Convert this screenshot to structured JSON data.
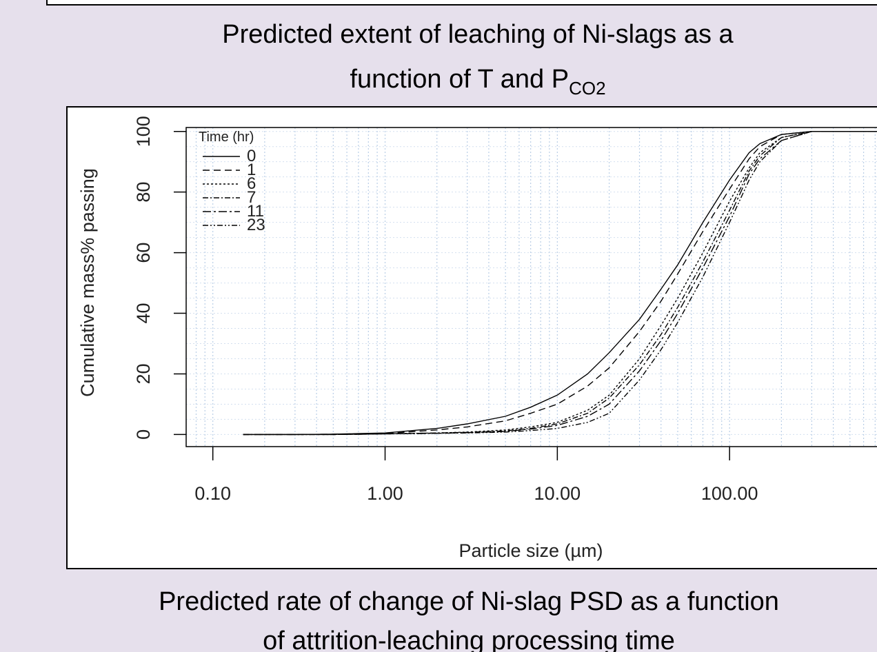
{
  "caption_top": {
    "line1": "Predicted extent of leaching of Ni-slags as  a",
    "line2": "function of T and P",
    "subscript": "CO2"
  },
  "chart_data": {
    "type": "line",
    "xlabel": "Particle size (µm)",
    "ylabel": "Cumulative mass% passing",
    "legend_title": "Time (hr)",
    "legend": "top-left",
    "log_x": true,
    "grid": true,
    "xlim": [
      0.07,
      1000
    ],
    "ylim": [
      -4,
      101.3
    ],
    "xticks": [
      {
        "value": 0.1,
        "label": "0.10"
      },
      {
        "value": 1,
        "label": "1.00"
      },
      {
        "value": 10,
        "label": "10.00"
      },
      {
        "value": 100,
        "label": "100.00"
      }
    ],
    "yticks": [
      0,
      20,
      40,
      60,
      80,
      100
    ],
    "xgrid": [
      0.08,
      0.09,
      0.1,
      0.2,
      0.3,
      0.4,
      0.5,
      0.6,
      0.7,
      0.8,
      0.9,
      1,
      2,
      3,
      4,
      5,
      6,
      7,
      8,
      9,
      10,
      20,
      30,
      40,
      50,
      60,
      70,
      80,
      90,
      100,
      200,
      300,
      400,
      500,
      600,
      700,
      800,
      900
    ],
    "ygrid": [
      0,
      5,
      10,
      15,
      20,
      25,
      30,
      35,
      40,
      45,
      50,
      55,
      60,
      65,
      70,
      75,
      80,
      85,
      90,
      95,
      100
    ],
    "x": [
      0.15,
      0.3,
      0.5,
      0.7,
      1,
      2,
      3,
      5,
      7,
      10,
      15,
      20,
      30,
      40,
      50,
      70,
      100,
      130,
      150,
      200,
      300,
      1000
    ],
    "series": [
      {
        "name": "0",
        "color": "#000000",
        "dash": "none",
        "values": [
          0,
          0,
          0.1,
          0.3,
          0.5,
          2,
          3.5,
          6,
          9,
          13,
          20,
          27,
          38,
          48,
          56,
          70,
          84,
          93,
          96,
          99,
          100,
          100
        ]
      },
      {
        "name": "1",
        "color": "#000000",
        "dash": "10 6",
        "values": [
          0,
          0,
          0.1,
          0.2,
          0.3,
          1.5,
          2.5,
          4.5,
          7,
          10,
          16,
          22,
          34,
          44,
          53,
          67,
          81,
          91,
          95,
          99,
          100,
          100
        ]
      },
      {
        "name": "6",
        "color": "#000000",
        "dash": "3 3",
        "values": [
          0,
          0,
          0,
          0.1,
          0.2,
          0.5,
          0.8,
          1.5,
          2.5,
          4,
          8,
          13,
          25,
          36,
          45,
          60,
          77,
          88,
          93,
          98,
          100,
          100
        ]
      },
      {
        "name": "7",
        "color": "#000000",
        "dash": "8 3 2 3",
        "values": [
          0,
          0,
          0,
          0.1,
          0.2,
          0.5,
          0.7,
          1.2,
          2,
          3.5,
          7,
          12,
          23,
          33,
          42,
          57,
          74,
          87,
          92,
          98,
          100,
          100
        ]
      },
      {
        "name": "11",
        "color": "#000000",
        "dash": "12 4 3 4",
        "values": [
          0,
          0,
          0,
          0.1,
          0.2,
          0.4,
          0.6,
          1,
          1.8,
          3,
          6,
          10,
          21,
          31,
          40,
          55,
          72,
          86,
          91,
          97,
          100,
          100
        ]
      },
      {
        "name": "23",
        "color": "#000000",
        "dash": "8 3 2 3 2 3",
        "values": [
          0,
          0,
          0,
          0.1,
          0.2,
          0.4,
          0.5,
          0.8,
          1.3,
          2,
          4,
          7,
          18,
          28,
          37,
          52,
          70,
          84,
          90,
          97,
          100,
          100
        ]
      }
    ]
  },
  "caption_bottom": {
    "line1": "Predicted rate of change of Ni-slag PSD as a function",
    "line2": "of attrition-leaching processing time"
  }
}
